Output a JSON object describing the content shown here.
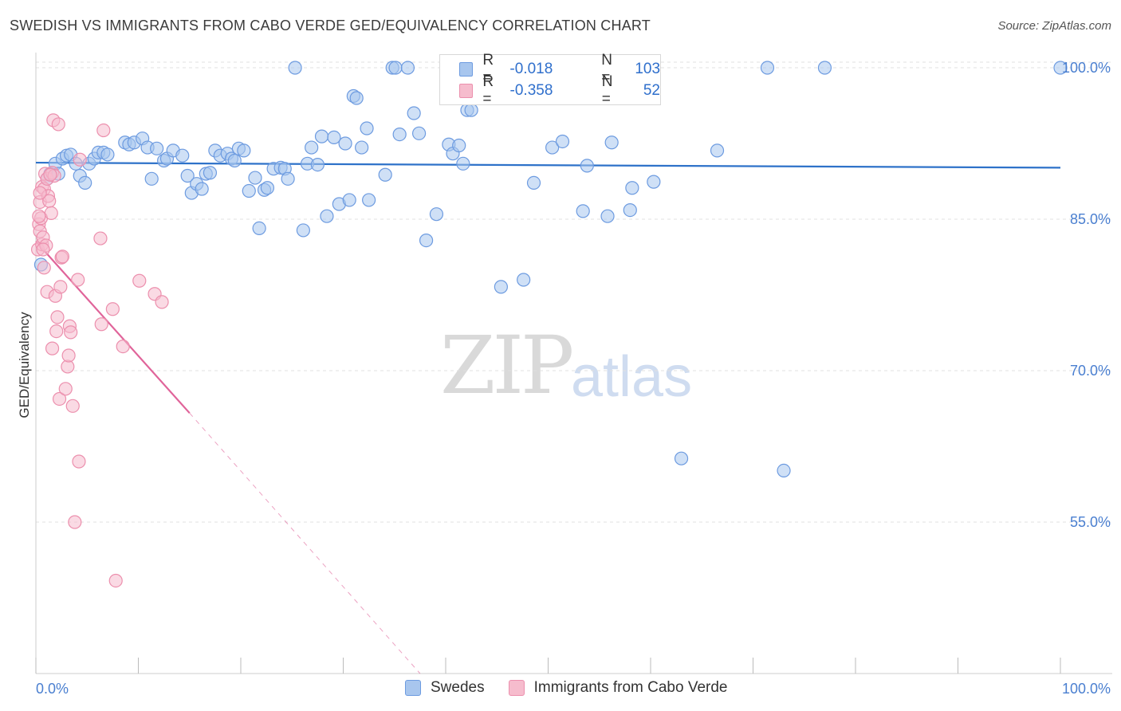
{
  "title": "SWEDISH VS IMMIGRANTS FROM CABO VERDE GED/EQUIVALENCY CORRELATION CHART",
  "source": "Source: ZipAtlas.com",
  "watermark": {
    "zip": "ZIP",
    "atlas": "atlas"
  },
  "legend": {
    "rows": [
      {
        "r_label": "R =",
        "r_value": "-0.018",
        "n_label": "N =",
        "n_value": "103"
      },
      {
        "r_label": "R =",
        "r_value": "-0.358",
        "n_label": "N =",
        "n_value": "52"
      }
    ]
  },
  "bottom_legend": {
    "series1": "Swedes",
    "series2": "Immigrants from Cabo Verde"
  },
  "colors": {
    "blue_fill": "#a8c6ee",
    "blue_stroke": "#6d9be0",
    "blue_line": "#2e72c9",
    "pink_fill": "#f6bccd",
    "pink_stroke": "#ec8fad",
    "pink_line": "#e0649a",
    "grid": "#e0e0e0",
    "tick_label": "#4a7fd0"
  },
  "chart_data": {
    "type": "scatter",
    "title": "SWEDISH VS IMMIGRANTS FROM CABO VERDE GED/EQUIVALENCY CORRELATION CHART",
    "xlabel": "",
    "ylabel": "GED/Equivalency",
    "xlim": [
      0,
      100
    ],
    "ylim": [
      40,
      101.5
    ],
    "x_tick_labels": [
      "0.0%",
      "100.0%"
    ],
    "y_ticks": [
      55,
      70,
      85,
      100
    ],
    "y_tick_labels": [
      "55.0%",
      "70.0%",
      "85.0%",
      "100.0%"
    ],
    "series": [
      {
        "name": "Swedes",
        "r": -0.018,
        "n": 103,
        "trend": {
          "x": [
            0,
            100
          ],
          "y": [
            90.6,
            90.1
          ],
          "dashed_from": null
        },
        "points": [
          [
            0.5,
            80.5
          ],
          [
            1.1,
            89.0
          ],
          [
            1.4,
            89.5
          ],
          [
            1.9,
            90.5
          ],
          [
            2.2,
            89.5
          ],
          [
            2.6,
            91.0
          ],
          [
            3.0,
            91.3
          ],
          [
            3.4,
            91.4
          ],
          [
            3.9,
            90.5
          ],
          [
            4.3,
            89.3
          ],
          [
            4.8,
            88.6
          ],
          [
            5.2,
            90.5
          ],
          [
            5.7,
            91.0
          ],
          [
            6.1,
            91.6
          ],
          [
            6.6,
            91.6
          ],
          [
            7.0,
            91.4
          ],
          [
            8.7,
            92.6
          ],
          [
            9.1,
            92.4
          ],
          [
            9.6,
            92.6
          ],
          [
            10.4,
            93.0
          ],
          [
            10.9,
            92.1
          ],
          [
            11.3,
            89.0
          ],
          [
            11.8,
            92.0
          ],
          [
            12.5,
            90.8
          ],
          [
            12.8,
            91.0
          ],
          [
            13.4,
            91.8
          ],
          [
            14.3,
            91.3
          ],
          [
            14.8,
            89.3
          ],
          [
            15.2,
            87.6
          ],
          [
            15.7,
            88.5
          ],
          [
            16.2,
            88.0
          ],
          [
            16.6,
            89.5
          ],
          [
            17.0,
            89.6
          ],
          [
            17.5,
            91.8
          ],
          [
            18.0,
            91.3
          ],
          [
            18.7,
            91.5
          ],
          [
            19.1,
            91.0
          ],
          [
            19.4,
            90.8
          ],
          [
            19.8,
            92.0
          ],
          [
            20.3,
            91.8
          ],
          [
            20.8,
            87.8
          ],
          [
            21.4,
            89.1
          ],
          [
            21.8,
            84.1
          ],
          [
            22.3,
            87.9
          ],
          [
            22.6,
            88.1
          ],
          [
            23.2,
            90.0
          ],
          [
            23.9,
            90.1
          ],
          [
            24.3,
            90.0
          ],
          [
            24.6,
            89.0
          ],
          [
            25.3,
            100.0
          ],
          [
            26.1,
            83.9
          ],
          [
            26.5,
            90.5
          ],
          [
            26.9,
            92.1
          ],
          [
            27.5,
            90.4
          ],
          [
            27.9,
            93.2
          ],
          [
            28.4,
            85.3
          ],
          [
            29.1,
            93.1
          ],
          [
            29.6,
            86.5
          ],
          [
            30.2,
            92.5
          ],
          [
            30.6,
            86.9
          ],
          [
            31.0,
            97.2
          ],
          [
            31.3,
            97.0
          ],
          [
            31.8,
            92.1
          ],
          [
            32.3,
            94.0
          ],
          [
            32.5,
            86.9
          ],
          [
            34.1,
            89.4
          ],
          [
            34.8,
            100.0
          ],
          [
            35.1,
            100.0
          ],
          [
            35.5,
            93.4
          ],
          [
            36.3,
            100.0
          ],
          [
            36.9,
            95.5
          ],
          [
            37.4,
            93.5
          ],
          [
            38.1,
            82.9
          ],
          [
            39.1,
            85.5
          ],
          [
            40.3,
            92.4
          ],
          [
            40.7,
            91.5
          ],
          [
            41.3,
            92.3
          ],
          [
            41.7,
            90.5
          ],
          [
            42.1,
            95.8
          ],
          [
            42.5,
            95.8
          ],
          [
            43.9,
            100.0
          ],
          [
            45.4,
            78.3
          ],
          [
            46.1,
            100.0
          ],
          [
            47.6,
            79.0
          ],
          [
            48.0,
            100.0
          ],
          [
            48.6,
            88.6
          ],
          [
            50.4,
            92.1
          ],
          [
            51.4,
            92.7
          ],
          [
            53.4,
            85.8
          ],
          [
            53.8,
            90.3
          ],
          [
            55.8,
            85.3
          ],
          [
            56.2,
            92.6
          ],
          [
            58.0,
            85.9
          ],
          [
            58.2,
            88.1
          ],
          [
            60.3,
            88.7
          ],
          [
            63.0,
            61.3
          ],
          [
            66.5,
            91.8
          ],
          [
            71.4,
            100.0
          ],
          [
            73.0,
            60.1
          ],
          [
            77.0,
            100.0
          ],
          [
            100.0,
            100.0
          ]
        ]
      },
      {
        "name": "Immigrants from Cabo Verde",
        "r": -0.358,
        "n": 52,
        "trend": {
          "x": [
            0,
            15,
            37.5
          ],
          "y": [
            82.8,
            65.8,
            40.0
          ],
          "dashed_from": 15
        },
        "points": [
          [
            0.2,
            82.0
          ],
          [
            0.3,
            84.5
          ],
          [
            0.4,
            83.8
          ],
          [
            0.4,
            86.7
          ],
          [
            0.5,
            85.1
          ],
          [
            0.6,
            88.2
          ],
          [
            0.6,
            82.5
          ],
          [
            0.7,
            83.2
          ],
          [
            0.8,
            80.2
          ],
          [
            0.8,
            88.0
          ],
          [
            0.9,
            89.5
          ],
          [
            1.0,
            82.4
          ],
          [
            1.1,
            77.8
          ],
          [
            1.1,
            89.0
          ],
          [
            1.2,
            87.3
          ],
          [
            1.3,
            86.8
          ],
          [
            1.5,
            85.6
          ],
          [
            1.6,
            89.6
          ],
          [
            1.6,
            72.2
          ],
          [
            1.7,
            94.8
          ],
          [
            1.8,
            89.3
          ],
          [
            1.9,
            77.4
          ],
          [
            2.0,
            73.9
          ],
          [
            2.1,
            75.3
          ],
          [
            2.2,
            94.4
          ],
          [
            2.3,
            67.2
          ],
          [
            2.4,
            78.3
          ],
          [
            2.5,
            81.2
          ],
          [
            2.6,
            81.3
          ],
          [
            2.9,
            68.2
          ],
          [
            3.1,
            70.4
          ],
          [
            3.2,
            71.5
          ],
          [
            3.3,
            74.4
          ],
          [
            3.4,
            73.8
          ],
          [
            3.6,
            66.5
          ],
          [
            3.8,
            55.0
          ],
          [
            4.1,
            79.0
          ],
          [
            4.2,
            61.0
          ],
          [
            4.3,
            90.9
          ],
          [
            6.3,
            83.1
          ],
          [
            6.4,
            74.6
          ],
          [
            6.6,
            93.8
          ],
          [
            7.5,
            76.1
          ],
          [
            7.8,
            49.2
          ],
          [
            8.5,
            72.4
          ],
          [
            10.1,
            78.9
          ],
          [
            11.6,
            77.6
          ],
          [
            12.3,
            76.8
          ],
          [
            0.3,
            85.3
          ],
          [
            0.4,
            87.6
          ],
          [
            0.7,
            82.0
          ],
          [
            1.4,
            89.4
          ]
        ]
      }
    ]
  }
}
